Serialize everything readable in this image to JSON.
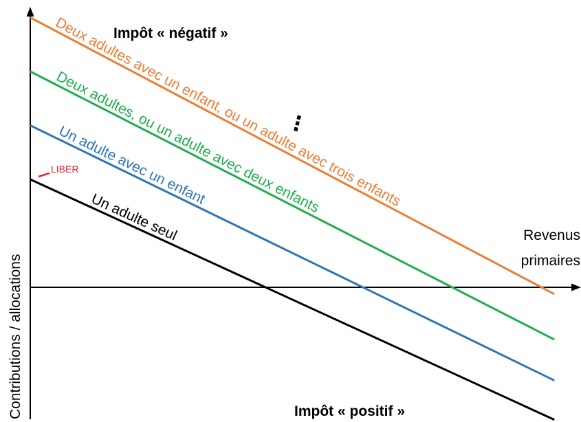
{
  "chart_data": {
    "type": "line",
    "xlabel": "Revenus primaires",
    "ylabel": "Contributions / allocations",
    "annotations": {
      "top": "Impôt « négatif »",
      "bottom": "Impôt « positif »",
      "liber": "LIBER",
      "ellipsis": "⋮"
    },
    "colors": {
      "axis": "#000000",
      "liber": "#e0262b"
    },
    "series": [
      {
        "name": "Un adulte seul",
        "color": "#000000",
        "intercept": 1,
        "zero_crossing": 1.45
      },
      {
        "name": "Un adulte avec un enfant",
        "color": "#2e75b6",
        "intercept": 1.5,
        "zero_crossing": 2.05
      },
      {
        "name": "Deux adultes, ou un adulte avec deux enfants",
        "color": "#1fad4e",
        "intercept": 2,
        "zero_crossing": 2.6
      },
      {
        "name": "Deux adultes avec un enfant, ou un adulte avec trois enfants",
        "color": "#ed7d31",
        "intercept": 2.5,
        "zero_crossing": 3.15
      }
    ]
  }
}
